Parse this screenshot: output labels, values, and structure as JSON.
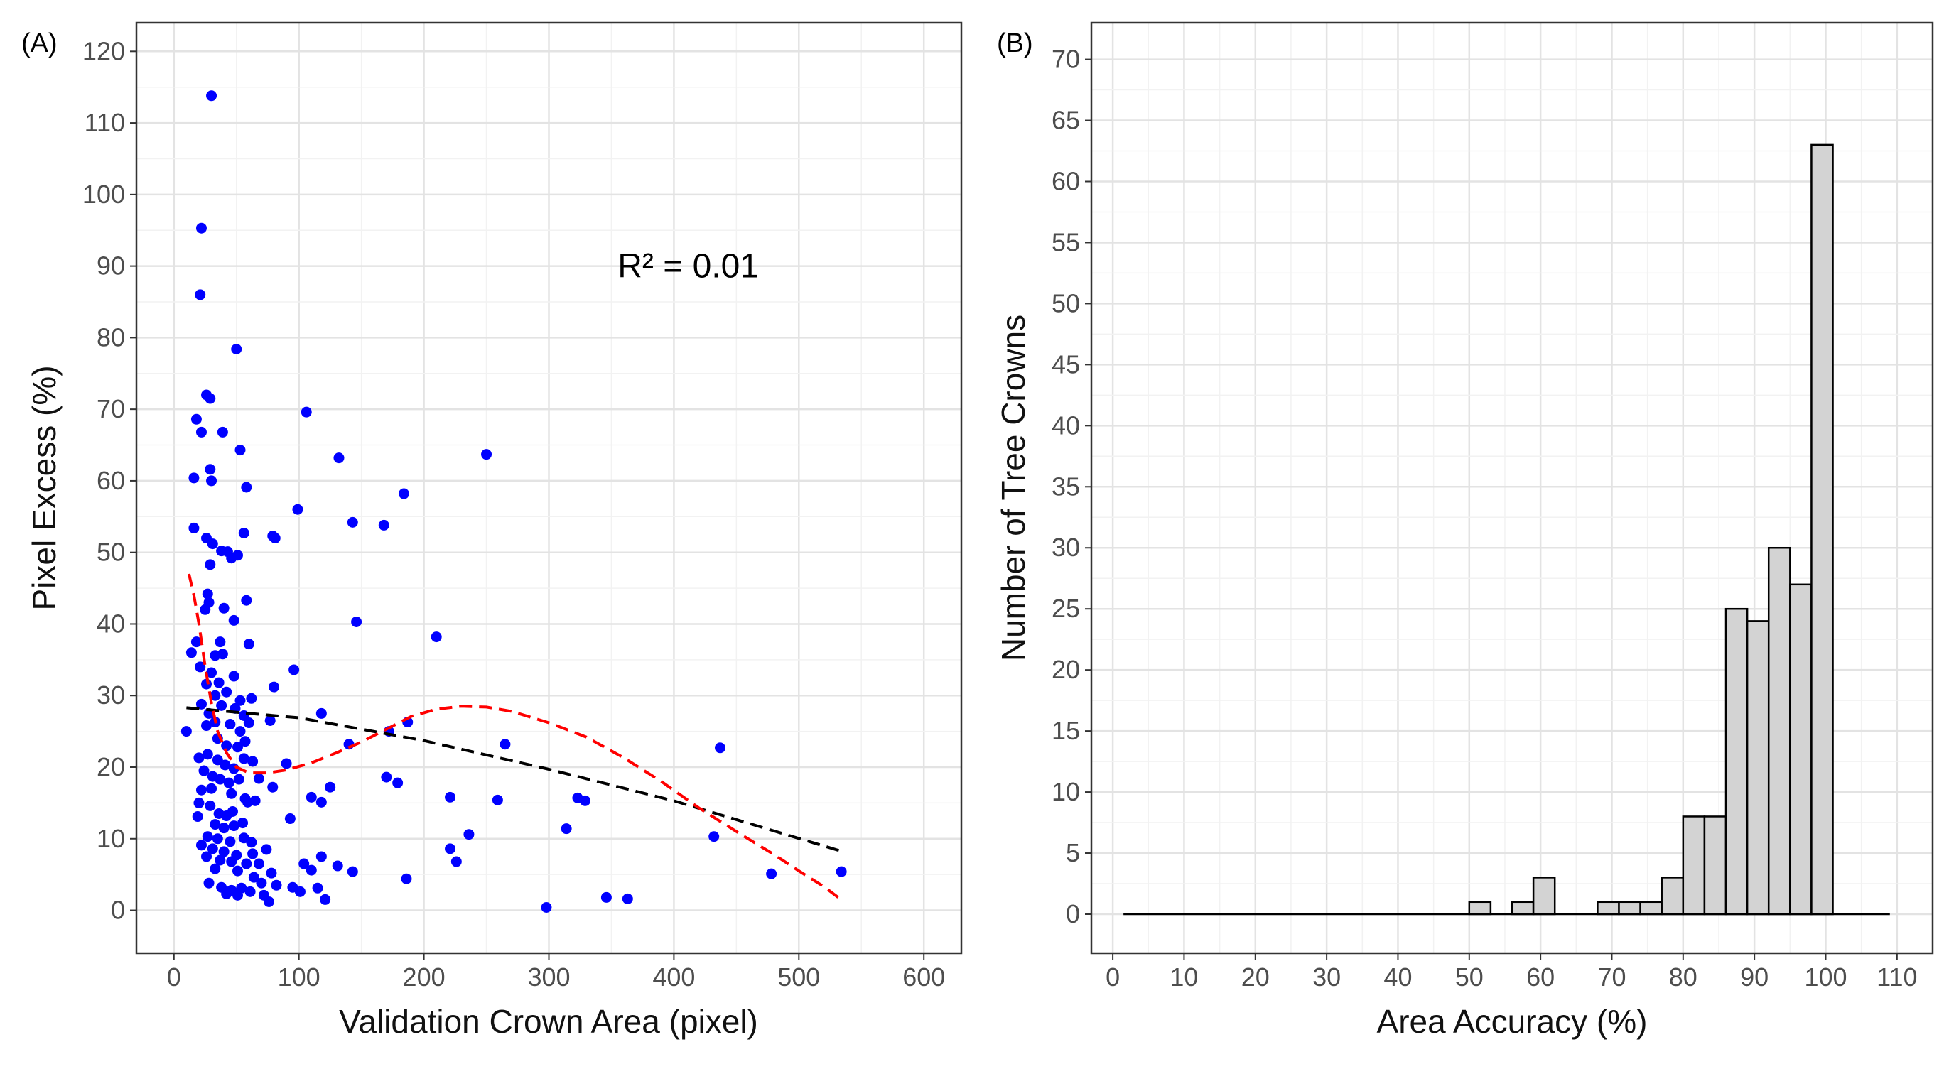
{
  "figure": {
    "panels": [
      {
        "label": "(A)"
      },
      {
        "label": "(B)"
      }
    ]
  },
  "chart_data": [
    {
      "type": "scatter",
      "panel": "(A)",
      "xlabel": "Validation Crown Area (pixel)",
      "ylabel": "Pixel Excess (%)",
      "xlim": [
        -30,
        630
      ],
      "ylim": [
        -6,
        124
      ],
      "xticks": [
        0,
        100,
        200,
        300,
        400,
        500,
        600
      ],
      "yticks": [
        0,
        10,
        20,
        30,
        40,
        50,
        60,
        70,
        80,
        90,
        100,
        110,
        120
      ],
      "grid": true,
      "annotation": {
        "text": "R² = 0.01",
        "x": 355,
        "y": 90
      },
      "point_color": "#0000ff",
      "points": [
        [
          30,
          113.8
        ],
        [
          22,
          95.3
        ],
        [
          21,
          86
        ],
        [
          50,
          78.4
        ],
        [
          26,
          72
        ],
        [
          29,
          71.5
        ],
        [
          18,
          68.6
        ],
        [
          22,
          66.8
        ],
        [
          39,
          66.8
        ],
        [
          106,
          69.6
        ],
        [
          53,
          64.3
        ],
        [
          16,
          60.4
        ],
        [
          29,
          61.6
        ],
        [
          30,
          60
        ],
        [
          58,
          59.1
        ],
        [
          132,
          63.2
        ],
        [
          250,
          63.7
        ],
        [
          99,
          56
        ],
        [
          184,
          58.2
        ],
        [
          16,
          53.4
        ],
        [
          26,
          52
        ],
        [
          31,
          51.2
        ],
        [
          38,
          50.2
        ],
        [
          43,
          50.1
        ],
        [
          51,
          49.6
        ],
        [
          56,
          52.7
        ],
        [
          79,
          52.3
        ],
        [
          81,
          52
        ],
        [
          143,
          54.2
        ],
        [
          168,
          53.8
        ],
        [
          29,
          48.3
        ],
        [
          46,
          49.2
        ],
        [
          27,
          44.2
        ],
        [
          28,
          43
        ],
        [
          25,
          42
        ],
        [
          40,
          42.2
        ],
        [
          58,
          43.3
        ],
        [
          18,
          37.5
        ],
        [
          37,
          37.5
        ],
        [
          48,
          40.5
        ],
        [
          60,
          37.2
        ],
        [
          146,
          40.3
        ],
        [
          210,
          38.2
        ],
        [
          14,
          36
        ],
        [
          21,
          34
        ],
        [
          33,
          35.6
        ],
        [
          39,
          35.8
        ],
        [
          30,
          33.2
        ],
        [
          36,
          31.8
        ],
        [
          48,
          32.7
        ],
        [
          96,
          33.6
        ],
        [
          26,
          31.6
        ],
        [
          33,
          30
        ],
        [
          42,
          30.5
        ],
        [
          53,
          29.3
        ],
        [
          62,
          29.6
        ],
        [
          80,
          31.2
        ],
        [
          22,
          28.8
        ],
        [
          28,
          27.5
        ],
        [
          38,
          28.6
        ],
        [
          49,
          28.2
        ],
        [
          56,
          27.2
        ],
        [
          118,
          27.5
        ],
        [
          10,
          25
        ],
        [
          26,
          25.8
        ],
        [
          33,
          26.3
        ],
        [
          45,
          26
        ],
        [
          53,
          25
        ],
        [
          60,
          26.2
        ],
        [
          77,
          26.5
        ],
        [
          172,
          25
        ],
        [
          187,
          26.3
        ],
        [
          35,
          24
        ],
        [
          42,
          23
        ],
        [
          51,
          22.8
        ],
        [
          57,
          23.6
        ],
        [
          140,
          23.2
        ],
        [
          265,
          23.2
        ],
        [
          437,
          22.7
        ],
        [
          20,
          21.3
        ],
        [
          27,
          21.8
        ],
        [
          35,
          21
        ],
        [
          41,
          20.3
        ],
        [
          48,
          19.8
        ],
        [
          56,
          21.2
        ],
        [
          63,
          20.8
        ],
        [
          90,
          20.5
        ],
        [
          24,
          19.5
        ],
        [
          31,
          18.7
        ],
        [
          37,
          18.3
        ],
        [
          44,
          17.8
        ],
        [
          52,
          18.3
        ],
        [
          68,
          18.4
        ],
        [
          79,
          17.2
        ],
        [
          170,
          18.6
        ],
        [
          179,
          17.8
        ],
        [
          22,
          16.8
        ],
        [
          30,
          17
        ],
        [
          46,
          16.3
        ],
        [
          57,
          15.6
        ],
        [
          110,
          15.8
        ],
        [
          125,
          17.2
        ],
        [
          221,
          15.8
        ],
        [
          259,
          15.4
        ],
        [
          323,
          15.7
        ],
        [
          329,
          15.3
        ],
        [
          20,
          15
        ],
        [
          29,
          14.6
        ],
        [
          36,
          13.5
        ],
        [
          42,
          13.2
        ],
        [
          47,
          13.8
        ],
        [
          59,
          15.1
        ],
        [
          65,
          15.3
        ],
        [
          93,
          12.8
        ],
        [
          118,
          15.1
        ],
        [
          19,
          13.1
        ],
        [
          33,
          12
        ],
        [
          40,
          11.5
        ],
        [
          48,
          11.8
        ],
        [
          55,
          12.2
        ],
        [
          314,
          11.4
        ],
        [
          236,
          10.6
        ],
        [
          27,
          10.3
        ],
        [
          35,
          10
        ],
        [
          45,
          9.6
        ],
        [
          56,
          10.1
        ],
        [
          62,
          9.5
        ],
        [
          432,
          10.3
        ],
        [
          22,
          9.1
        ],
        [
          31,
          8.6
        ],
        [
          40,
          8.2
        ],
        [
          50,
          7.7
        ],
        [
          63,
          7.9
        ],
        [
          74,
          8.5
        ],
        [
          221,
          8.6
        ],
        [
          26,
          7.5
        ],
        [
          37,
          7
        ],
        [
          46,
          6.8
        ],
        [
          58,
          6.5
        ],
        [
          68,
          6.5
        ],
        [
          104,
          6.5
        ],
        [
          118,
          7.5
        ],
        [
          131,
          6.2
        ],
        [
          226,
          6.8
        ],
        [
          33,
          5.8
        ],
        [
          51,
          5.5
        ],
        [
          64,
          4.6
        ],
        [
          78,
          5.2
        ],
        [
          110,
          5.6
        ],
        [
          143,
          5.4
        ],
        [
          478,
          5.1
        ],
        [
          534,
          5.4
        ],
        [
          28,
          3.8
        ],
        [
          38,
          3.2
        ],
        [
          46,
          2.8
        ],
        [
          54,
          3.1
        ],
        [
          70,
          3.8
        ],
        [
          82,
          3.5
        ],
        [
          95,
          3.2
        ],
        [
          115,
          3.1
        ],
        [
          42,
          2.3
        ],
        [
          51,
          2.1
        ],
        [
          61,
          2.6
        ],
        [
          72,
          2.1
        ],
        [
          101,
          2.6
        ],
        [
          121,
          1.5
        ],
        [
          186,
          4.4
        ],
        [
          346,
          1.8
        ],
        [
          363,
          1.6
        ],
        [
          76,
          1.2
        ],
        [
          298,
          0.4
        ]
      ],
      "trend_lines": [
        {
          "name": "linear fit",
          "color": "#000000",
          "dash": "dashed",
          "points": [
            [
              10,
              28.3
            ],
            [
              100,
              26.9
            ],
            [
              200,
              23.7
            ],
            [
              300,
              19.7
            ],
            [
              400,
              15.3
            ],
            [
              535,
              8.2
            ]
          ]
        },
        {
          "name": "loess smooth",
          "color": "#ff0000",
          "dash": "dashed",
          "points": [
            [
              12,
              47
            ],
            [
              16,
              44
            ],
            [
              20,
              40
            ],
            [
              25,
              34
            ],
            [
              30,
              29
            ],
            [
              35,
              25
            ],
            [
              42,
              22
            ],
            [
              50,
              20
            ],
            [
              60,
              19.2
            ],
            [
              75,
              19.2
            ],
            [
              90,
              19.6
            ],
            [
              110,
              20.6
            ],
            [
              130,
              22
            ],
            [
              150,
              23.5
            ],
            [
              170,
              25.3
            ],
            [
              190,
              27.1
            ],
            [
              210,
              28.1
            ],
            [
              230,
              28.5
            ],
            [
              250,
              28.4
            ],
            [
              270,
              27.8
            ],
            [
              300,
              26.2
            ],
            [
              330,
              24.2
            ],
            [
              360,
              21.3
            ],
            [
              390,
              18
            ],
            [
              420,
              14.3
            ],
            [
              450,
              11
            ],
            [
              480,
              7.8
            ],
            [
              500,
              5.5
            ],
            [
              520,
              3.3
            ],
            [
              533,
              1.6
            ]
          ]
        }
      ]
    },
    {
      "type": "bar",
      "subtype": "histogram",
      "panel": "(B)",
      "xlabel": "Area Accuracy (%)",
      "ylabel": "Number of Tree Crowns",
      "xlim": [
        -3,
        115
      ],
      "ylim": [
        -3.2,
        73
      ],
      "xticks": [
        0,
        10,
        20,
        30,
        40,
        50,
        60,
        70,
        80,
        90,
        100,
        110
      ],
      "yticks": [
        0,
        5,
        10,
        15,
        20,
        25,
        30,
        35,
        40,
        45,
        50,
        55,
        60,
        65,
        70
      ],
      "grid": true,
      "bin_width": 3,
      "baseline_range": [
        1.5,
        109
      ],
      "bar_fill": "#d3d3d3",
      "bar_stroke": "#000000",
      "bins": [
        {
          "start": 50,
          "count": 1
        },
        {
          "start": 56,
          "count": 1
        },
        {
          "start": 59,
          "count": 3
        },
        {
          "start": 68,
          "count": 1
        },
        {
          "start": 71,
          "count": 1
        },
        {
          "start": 74,
          "count": 1
        },
        {
          "start": 77,
          "count": 3
        },
        {
          "start": 80,
          "count": 8
        },
        {
          "start": 83,
          "count": 8
        },
        {
          "start": 86,
          "count": 25
        },
        {
          "start": 89,
          "count": 24
        },
        {
          "start": 92,
          "count": 30
        },
        {
          "start": 95,
          "count": 27
        },
        {
          "start": 98,
          "count": 63
        }
      ]
    }
  ]
}
